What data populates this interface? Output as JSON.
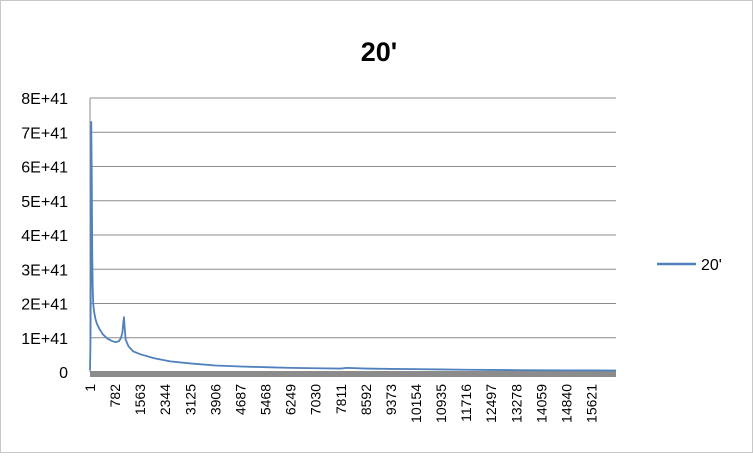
{
  "chart_data": {
    "type": "line",
    "title": "20'",
    "xlabel": "",
    "ylabel": "",
    "ylim": [
      0,
      8e+41
    ],
    "y_ticks": [
      {
        "value": 0,
        "label": "0"
      },
      {
        "value": 1e+41,
        "label": "1E+41"
      },
      {
        "value": 2e+41,
        "label": "2E+41"
      },
      {
        "value": 3e+41,
        "label": "3E+41"
      },
      {
        "value": 4e+41,
        "label": "4E+41"
      },
      {
        "value": 5e+41,
        "label": "5E+41"
      },
      {
        "value": 6e+41,
        "label": "6E+41"
      },
      {
        "value": 7e+41,
        "label": "7E+41"
      },
      {
        "value": 8e+41,
        "label": "8E+41"
      }
    ],
    "x_range": [
      1,
      16384
    ],
    "x_ticks": [
      {
        "value": 1,
        "label": "1"
      },
      {
        "value": 782,
        "label": "782"
      },
      {
        "value": 1563,
        "label": "1563"
      },
      {
        "value": 2344,
        "label": "2344"
      },
      {
        "value": 3125,
        "label": "3125"
      },
      {
        "value": 3906,
        "label": "3906"
      },
      {
        "value": 4687,
        "label": "4687"
      },
      {
        "value": 5468,
        "label": "5468"
      },
      {
        "value": 6249,
        "label": "6249"
      },
      {
        "value": 7030,
        "label": "7030"
      },
      {
        "value": 7811,
        "label": "7811"
      },
      {
        "value": 8592,
        "label": "8592"
      },
      {
        "value": 9373,
        "label": "9373"
      },
      {
        "value": 10154,
        "label": "10154"
      },
      {
        "value": 10935,
        "label": "10935"
      },
      {
        "value": 11716,
        "label": "11716"
      },
      {
        "value": 12497,
        "label": "12497"
      },
      {
        "value": 13278,
        "label": "13278"
      },
      {
        "value": 14059,
        "label": "14059"
      },
      {
        "value": 14840,
        "label": "14840"
      },
      {
        "value": 15621,
        "label": "15621"
      }
    ],
    "grid": true,
    "legend_position": "right",
    "series": [
      {
        "name": "20'",
        "color": "#4f81bd",
        "points": [
          [
            1,
            5e+39
          ],
          [
            15,
            8e+40
          ],
          [
            30,
            3e+41
          ],
          [
            40,
            7.3e+41
          ],
          [
            55,
            5.8e+41
          ],
          [
            70,
            3.5e+41
          ],
          [
            85,
            2.5e+41
          ],
          [
            100,
            2e+41
          ],
          [
            130,
            1.75e+41
          ],
          [
            170,
            1.55e+41
          ],
          [
            220,
            1.4e+41
          ],
          [
            300,
            1.25e+41
          ],
          [
            400,
            1.1e+41
          ],
          [
            550,
            9.7e+40
          ],
          [
            700,
            9e+40
          ],
          [
            800,
            8.7e+40
          ],
          [
            900,
            9e+40
          ],
          [
            960,
            9.8e+40
          ],
          [
            1010,
            1.15e+41
          ],
          [
            1040,
            1.45e+41
          ],
          [
            1060,
            1.6e+41
          ],
          [
            1080,
            1.3e+41
          ],
          [
            1110,
            9.5e+40
          ],
          [
            1200,
            7.5e+40
          ],
          [
            1350,
            6e+40
          ],
          [
            1563,
            5.2e+40
          ],
          [
            2000,
            4e+40
          ],
          [
            2500,
            3.1e+40
          ],
          [
            3125,
            2.5e+40
          ],
          [
            3906,
            1.9e+40
          ],
          [
            4687,
            1.6e+40
          ],
          [
            5468,
            1.4e+40
          ],
          [
            6249,
            1.2e+40
          ],
          [
            7030,
            1.1e+40
          ],
          [
            7811,
            1e+40
          ],
          [
            8000,
            1.2e+40
          ],
          [
            8592,
            1e+40
          ],
          [
            9373,
            9e+39
          ],
          [
            10154,
            8.5e+39
          ],
          [
            10935,
            7.5e+39
          ],
          [
            11716,
            6.5e+39
          ],
          [
            12497,
            6e+39
          ],
          [
            13278,
            5.5e+39
          ],
          [
            14059,
            5e+39
          ],
          [
            14840,
            4.8e+39
          ],
          [
            15621,
            4.5e+39
          ],
          [
            16384,
            4.3e+39
          ]
        ]
      }
    ]
  }
}
